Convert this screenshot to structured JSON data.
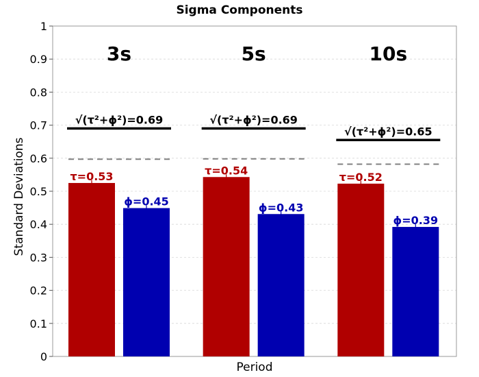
{
  "chart_data": {
    "type": "bar",
    "title": "Sigma Components",
    "xlabel": "Period",
    "ylabel": "Standard Deviations",
    "ylim": [
      0,
      1
    ],
    "yticks": [
      "0",
      "0.1",
      "0.2",
      "0.3",
      "0.4",
      "0.5",
      "0.6",
      "0.7",
      "0.8",
      "0.9",
      "1"
    ],
    "grid": true,
    "categories": [
      "3s",
      "5s",
      "10s"
    ],
    "series": [
      {
        "key": "tau",
        "values": [
          0.525,
          0.543,
          0.523
        ],
        "color": "#b00000",
        "labels": [
          "τ=0.53",
          "τ=0.54",
          "τ=0.52"
        ]
      },
      {
        "key": "phi",
        "values": [
          0.449,
          0.431,
          0.392
        ],
        "color": "#0000b0",
        "labels": [
          "ϕ=0.45",
          "ϕ=0.43",
          "ϕ=0.39"
        ]
      }
    ],
    "total": {
      "values": [
        0.69,
        0.69,
        0.655
      ],
      "labels": [
        "√(τ²+ϕ²)=0.69",
        "√(τ²+ϕ²)=0.69",
        "√(τ²+ϕ²)=0.65"
      ],
      "color": "#000000"
    },
    "reference": {
      "values": [
        0.597,
        0.598,
        0.582
      ],
      "color": "#808080",
      "style": "dashed"
    }
  }
}
